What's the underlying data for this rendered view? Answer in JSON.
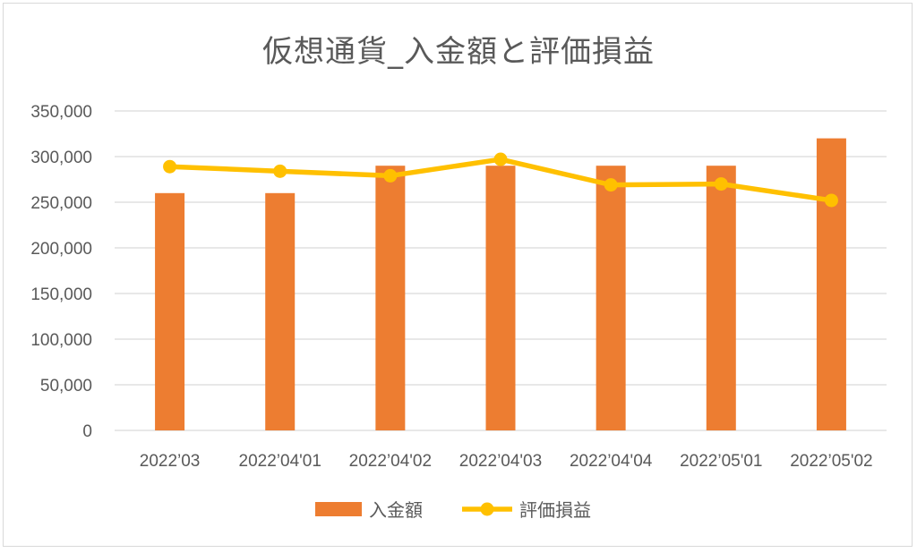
{
  "chart_data": {
    "type": "bar",
    "title": "仮想通貨_入金額と評価損益",
    "categories": [
      "2022’03",
      "2022’04'01",
      "2022’04'02",
      "2022’04'03",
      "2022’04'04",
      "2022’05'01",
      "2022’05'02"
    ],
    "ylim": [
      0,
      350000
    ],
    "yticks": [
      0,
      50000,
      100000,
      150000,
      200000,
      250000,
      300000,
      350000
    ],
    "ytick_labels": [
      "0",
      "50,000",
      "100,000",
      "150,000",
      "200,000",
      "250,000",
      "300,000",
      "350,000"
    ],
    "grid": true,
    "legend_position": "bottom",
    "series": [
      {
        "name": "入金額",
        "kind": "bar",
        "color": "#ED7D31",
        "values": [
          260000,
          260000,
          290000,
          290000,
          290000,
          290000,
          320000
        ]
      },
      {
        "name": "評価損益",
        "kind": "line",
        "color": "#FFC000",
        "values": [
          289000,
          284000,
          279000,
          297000,
          269000,
          270000,
          252000
        ]
      }
    ]
  }
}
